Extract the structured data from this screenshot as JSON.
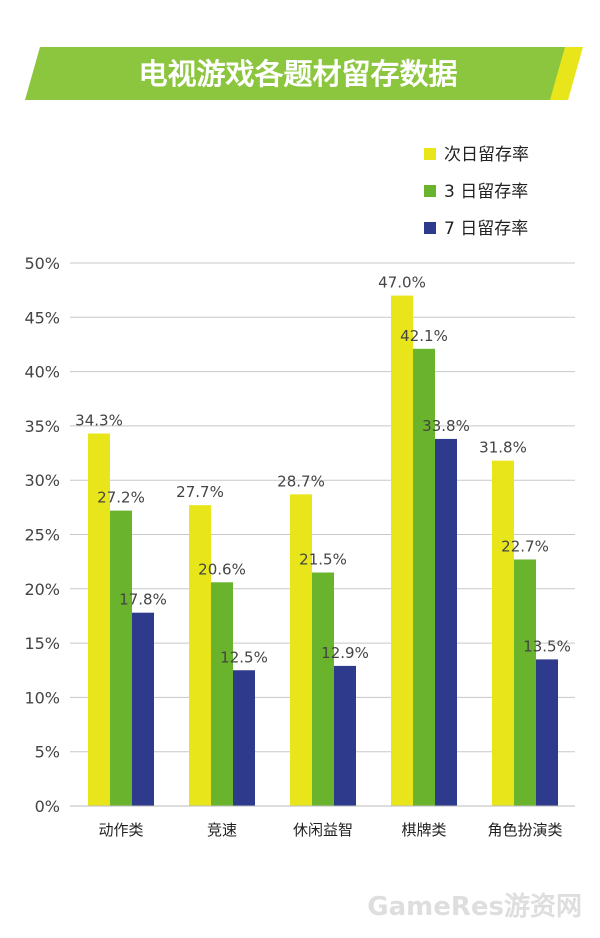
{
  "chart_data": {
    "type": "bar",
    "title": "电视游戏各题材留存数据",
    "categories": [
      "动作类",
      "竞速",
      "休闲益智",
      "棋牌类",
      "角色扮演类"
    ],
    "series": [
      {
        "name": "次日留存率",
        "values": [
          34.3,
          27.7,
          28.7,
          47.0,
          31.8
        ],
        "color": "#e8e61a"
      },
      {
        "name": "3 日留存率",
        "values": [
          27.2,
          20.6,
          21.5,
          42.1,
          22.7
        ],
        "color": "#6ab42d"
      },
      {
        "name": "7 日留存率",
        "values": [
          17.8,
          12.5,
          12.9,
          33.8,
          13.5
        ],
        "color": "#2e3a8c"
      }
    ],
    "value_labels": [
      [
        "34.3%",
        "27.7%",
        "28.7%",
        "47.0%",
        "31.8%"
      ],
      [
        "27.2%",
        "20.6%",
        "21.5%",
        "42.1%",
        "22.7%"
      ],
      [
        "17.8%",
        "12.5%",
        "12.9%",
        "33.8%",
        "13.5%"
      ]
    ],
    "yticks": [
      "0%",
      "5%",
      "10%",
      "15%",
      "20%",
      "25%",
      "30%",
      "35%",
      "40%",
      "45%",
      "50%"
    ],
    "ylim": [
      0,
      50
    ],
    "grid": true,
    "legend": "top-right"
  },
  "colors": {
    "title_banner": "#8cc63f",
    "title_accent": "#e8e61a",
    "title_text": "#ffffff",
    "grid": "#c8c8c8",
    "axis_text": "#444444"
  },
  "watermark": "GameRes游资网"
}
